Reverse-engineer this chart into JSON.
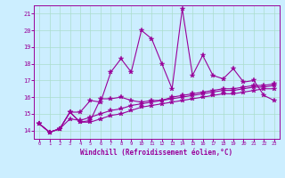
{
  "xlabel": "Windchill (Refroidissement éolien,°C)",
  "bg_color": "#cceeff",
  "line_color": "#990099",
  "grid_color": "#aaddcc",
  "xlim": [
    -0.5,
    23.5
  ],
  "ylim": [
    13.5,
    21.5
  ],
  "xticks": [
    0,
    1,
    2,
    3,
    4,
    5,
    6,
    7,
    8,
    9,
    10,
    11,
    12,
    13,
    14,
    15,
    16,
    17,
    18,
    19,
    20,
    21,
    22,
    23
  ],
  "yticks": [
    14,
    15,
    16,
    17,
    18,
    19,
    20,
    21
  ],
  "series1_x": [
    0,
    1,
    2,
    3,
    4,
    5,
    6,
    7,
    8,
    9,
    10,
    11,
    12,
    13,
    14,
    15,
    16,
    17,
    18,
    19,
    20,
    21,
    22,
    23
  ],
  "series1_y": [
    14.4,
    13.9,
    14.1,
    15.1,
    15.1,
    15.8,
    15.7,
    17.5,
    18.3,
    17.5,
    20.0,
    19.5,
    18.0,
    16.5,
    21.3,
    17.3,
    18.5,
    17.3,
    17.1,
    17.7,
    16.9,
    17.0,
    16.1,
    15.8
  ],
  "series2_x": [
    0,
    1,
    2,
    3,
    4,
    5,
    6,
    7,
    8,
    9,
    10,
    11,
    12,
    13,
    14,
    15,
    16,
    17,
    18,
    19,
    20,
    21,
    22,
    23
  ],
  "series2_y": [
    14.4,
    13.9,
    14.1,
    15.1,
    14.5,
    14.6,
    15.9,
    15.9,
    16.0,
    15.8,
    15.7,
    15.8,
    15.8,
    16.0,
    16.1,
    16.2,
    16.3,
    16.4,
    16.5,
    16.5,
    16.6,
    16.7,
    16.7,
    16.8
  ],
  "series3_x": [
    0,
    1,
    2,
    3,
    4,
    5,
    6,
    7,
    8,
    9,
    10,
    11,
    12,
    13,
    14,
    15,
    16,
    17,
    18,
    19,
    20,
    21,
    22,
    23
  ],
  "series3_y": [
    14.4,
    13.9,
    14.1,
    14.7,
    14.6,
    14.8,
    15.0,
    15.2,
    15.3,
    15.5,
    15.6,
    15.7,
    15.8,
    15.9,
    16.0,
    16.1,
    16.2,
    16.3,
    16.4,
    16.4,
    16.5,
    16.6,
    16.6,
    16.7
  ],
  "series4_x": [
    0,
    1,
    2,
    3,
    4,
    5,
    6,
    7,
    8,
    9,
    10,
    11,
    12,
    13,
    14,
    15,
    16,
    17,
    18,
    19,
    20,
    21,
    22,
    23
  ],
  "series4_y": [
    14.4,
    13.9,
    14.1,
    15.1,
    14.5,
    14.5,
    14.7,
    14.9,
    15.0,
    15.2,
    15.4,
    15.5,
    15.6,
    15.7,
    15.8,
    15.9,
    16.0,
    16.1,
    16.2,
    16.2,
    16.3,
    16.4,
    16.5,
    16.5
  ]
}
